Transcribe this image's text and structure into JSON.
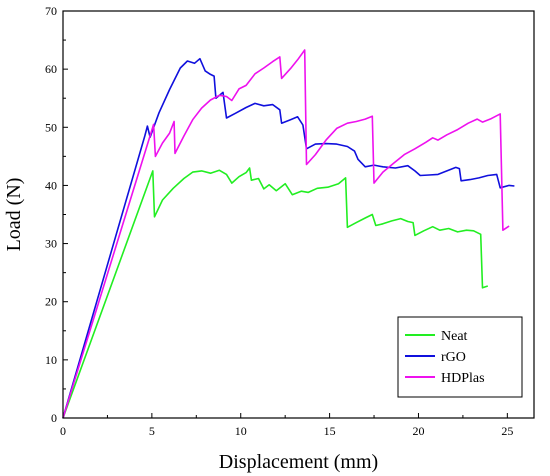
{
  "chart_data": {
    "type": "line",
    "title": "",
    "xlabel": "Displacement (mm)",
    "ylabel": "Load (N)",
    "xlim": [
      0,
      26.5
    ],
    "ylim": [
      0,
      70
    ],
    "xticks": [
      "0",
      "5",
      "10",
      "15",
      "20",
      "25"
    ],
    "yticks": [
      "0",
      "10",
      "20",
      "30",
      "40",
      "50",
      "60",
      "70"
    ],
    "grid": false,
    "legend_position": "bottom-right",
    "series": [
      {
        "name": "Neat",
        "color": "#22ee22",
        "points": [
          [
            0,
            0
          ],
          [
            5.05,
            42.5
          ],
          [
            5.15,
            34.6
          ],
          [
            5.6,
            37.5
          ],
          [
            6.2,
            39.5
          ],
          [
            6.8,
            41.2
          ],
          [
            7.3,
            42.3
          ],
          [
            7.8,
            42.5
          ],
          [
            8.3,
            42.1
          ],
          [
            8.8,
            42.6
          ],
          [
            9.2,
            41.9
          ],
          [
            9.5,
            40.4
          ],
          [
            9.9,
            41.5
          ],
          [
            10.3,
            42.2
          ],
          [
            10.5,
            43.0
          ],
          [
            10.6,
            40.9
          ],
          [
            11.0,
            41.2
          ],
          [
            11.3,
            39.4
          ],
          [
            11.6,
            40.1
          ],
          [
            12.0,
            39.1
          ],
          [
            12.5,
            40.3
          ],
          [
            12.9,
            38.4
          ],
          [
            13.4,
            39.0
          ],
          [
            13.8,
            38.8
          ],
          [
            14.3,
            39.5
          ],
          [
            14.9,
            39.7
          ],
          [
            15.5,
            40.3
          ],
          [
            15.9,
            41.3
          ],
          [
            16.0,
            32.8
          ],
          [
            16.5,
            33.6
          ],
          [
            17.0,
            34.4
          ],
          [
            17.4,
            35.0
          ],
          [
            17.6,
            33.1
          ],
          [
            18.0,
            33.4
          ],
          [
            18.5,
            33.9
          ],
          [
            19.0,
            34.3
          ],
          [
            19.4,
            33.8
          ],
          [
            19.7,
            33.6
          ],
          [
            19.8,
            31.4
          ],
          [
            20.3,
            32.2
          ],
          [
            20.8,
            32.9
          ],
          [
            21.2,
            32.3
          ],
          [
            21.7,
            32.6
          ],
          [
            22.2,
            32.0
          ],
          [
            22.7,
            32.3
          ],
          [
            23.1,
            32.2
          ],
          [
            23.5,
            31.6
          ],
          [
            23.6,
            22.4
          ],
          [
            23.9,
            22.7
          ]
        ]
      },
      {
        "name": "rGO",
        "color": "#1010dd",
        "points": [
          [
            0,
            0
          ],
          [
            4.6,
            48.5
          ],
          [
            4.75,
            50.2
          ],
          [
            4.9,
            48.3
          ],
          [
            5.4,
            52.5
          ],
          [
            6.0,
            56.5
          ],
          [
            6.6,
            60.2
          ],
          [
            7.0,
            61.4
          ],
          [
            7.4,
            61.0
          ],
          [
            7.7,
            61.8
          ],
          [
            8.0,
            59.7
          ],
          [
            8.3,
            59.1
          ],
          [
            8.5,
            58.8
          ],
          [
            8.6,
            55.0
          ],
          [
            9.0,
            56.0
          ],
          [
            9.2,
            51.6
          ],
          [
            9.7,
            52.4
          ],
          [
            10.3,
            53.4
          ],
          [
            10.8,
            54.1
          ],
          [
            11.3,
            53.7
          ],
          [
            11.8,
            53.9
          ],
          [
            12.2,
            53.0
          ],
          [
            12.3,
            50.7
          ],
          [
            12.8,
            51.3
          ],
          [
            13.2,
            51.8
          ],
          [
            13.5,
            50.4
          ],
          [
            13.7,
            46.3
          ],
          [
            14.2,
            47.1
          ],
          [
            14.8,
            47.2
          ],
          [
            15.4,
            47.1
          ],
          [
            16.0,
            46.7
          ],
          [
            16.4,
            45.9
          ],
          [
            16.6,
            44.5
          ],
          [
            17.0,
            43.2
          ],
          [
            17.5,
            43.5
          ],
          [
            18.0,
            43.2
          ],
          [
            18.7,
            43.0
          ],
          [
            19.4,
            43.4
          ],
          [
            19.8,
            42.5
          ],
          [
            20.1,
            41.7
          ],
          [
            20.6,
            41.8
          ],
          [
            21.1,
            41.9
          ],
          [
            21.6,
            42.5
          ],
          [
            22.1,
            43.1
          ],
          [
            22.3,
            42.9
          ],
          [
            22.4,
            40.8
          ],
          [
            22.9,
            41.0
          ],
          [
            23.4,
            41.3
          ],
          [
            23.9,
            41.7
          ],
          [
            24.4,
            41.9
          ],
          [
            24.6,
            39.6
          ],
          [
            25.1,
            40.0
          ],
          [
            25.4,
            39.9
          ]
        ]
      },
      {
        "name": "HDPlas",
        "color": "#ee11ee",
        "points": [
          [
            0,
            0
          ],
          [
            5.1,
            50.5
          ],
          [
            5.2,
            45.0
          ],
          [
            5.6,
            47.3
          ],
          [
            6.0,
            49.0
          ],
          [
            6.25,
            51.0
          ],
          [
            6.3,
            45.5
          ],
          [
            6.8,
            48.5
          ],
          [
            7.3,
            51.3
          ],
          [
            7.8,
            53.3
          ],
          [
            8.3,
            54.7
          ],
          [
            8.8,
            55.5
          ],
          [
            9.2,
            55.3
          ],
          [
            9.5,
            54.6
          ],
          [
            9.9,
            56.6
          ],
          [
            10.3,
            57.2
          ],
          [
            10.8,
            59.2
          ],
          [
            11.3,
            60.2
          ],
          [
            11.8,
            61.3
          ],
          [
            12.2,
            62.1
          ],
          [
            12.3,
            58.4
          ],
          [
            12.8,
            60.1
          ],
          [
            13.2,
            61.6
          ],
          [
            13.6,
            63.3
          ],
          [
            13.7,
            43.6
          ],
          [
            14.2,
            45.3
          ],
          [
            14.8,
            47.8
          ],
          [
            15.4,
            49.8
          ],
          [
            16.0,
            50.7
          ],
          [
            16.5,
            51.0
          ],
          [
            17.0,
            51.4
          ],
          [
            17.4,
            51.9
          ],
          [
            17.5,
            40.4
          ],
          [
            18.0,
            42.3
          ],
          [
            18.6,
            43.8
          ],
          [
            19.2,
            45.3
          ],
          [
            19.8,
            46.3
          ],
          [
            20.4,
            47.4
          ],
          [
            20.8,
            48.2
          ],
          [
            21.1,
            47.8
          ],
          [
            21.6,
            48.7
          ],
          [
            22.2,
            49.6
          ],
          [
            22.8,
            50.7
          ],
          [
            23.3,
            51.4
          ],
          [
            23.6,
            50.9
          ],
          [
            24.1,
            51.5
          ],
          [
            24.6,
            52.3
          ],
          [
            24.75,
            32.3
          ],
          [
            25.1,
            33.0
          ]
        ]
      }
    ]
  }
}
